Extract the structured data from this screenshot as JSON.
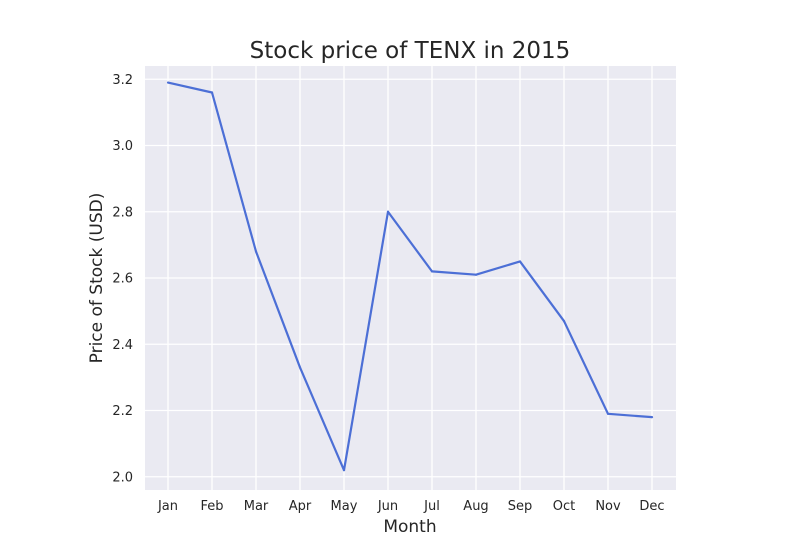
{
  "chart_data": {
    "type": "line",
    "title": "Stock price of TENX in 2015",
    "xlabel": "Month",
    "ylabel": "Price of Stock (USD)",
    "categories": [
      "Jan",
      "Feb",
      "Mar",
      "Apr",
      "May",
      "Jun",
      "Jul",
      "Aug",
      "Sep",
      "Oct",
      "Nov",
      "Dec"
    ],
    "series": [
      {
        "values": [
          3.19,
          3.16,
          2.68,
          2.33,
          2.02,
          2.8,
          2.62,
          2.61,
          2.65,
          2.47,
          2.19,
          2.18
        ]
      }
    ],
    "yticks": [
      "2.0",
      "2.2",
      "2.4",
      "2.6",
      "2.8",
      "3.0",
      "3.2"
    ],
    "ylim": [
      1.96,
      3.24
    ],
    "grid": true,
    "colors": {
      "line": "#4c6fd6",
      "plot_background": "#eaeaf2",
      "grid": "#ffffff"
    }
  }
}
